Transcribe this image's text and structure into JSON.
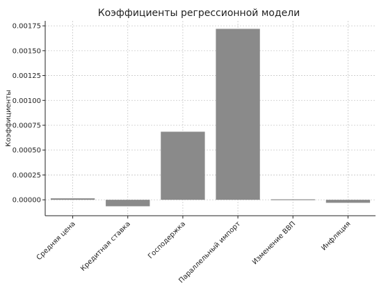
{
  "chart_data": {
    "type": "bar",
    "title": "Коэффициенты регрессионной модели",
    "xlabel": "",
    "ylabel": "Коэффициенты",
    "categories": [
      "Средняя цена",
      "Кредитная ставка",
      "Господержка",
      "Параллельный импорт",
      "Изменение ВВП",
      "Инфляция"
    ],
    "values": [
      1.5e-05,
      -6.5e-05,
      0.000685,
      0.00172,
      5e-06,
      -3e-05
    ],
    "ylim": [
      -0.00016,
      0.0018
    ],
    "yticks": [
      0.0,
      0.00025,
      0.0005,
      0.00075,
      0.001,
      0.00125,
      0.0015,
      0.00175
    ],
    "ytick_labels": [
      "0.00000",
      "0.00025",
      "0.00050",
      "0.00075",
      "0.00100",
      "0.00125",
      "0.00150",
      "0.00175"
    ],
    "grid": true,
    "bar_color": "#8a8a8a"
  }
}
